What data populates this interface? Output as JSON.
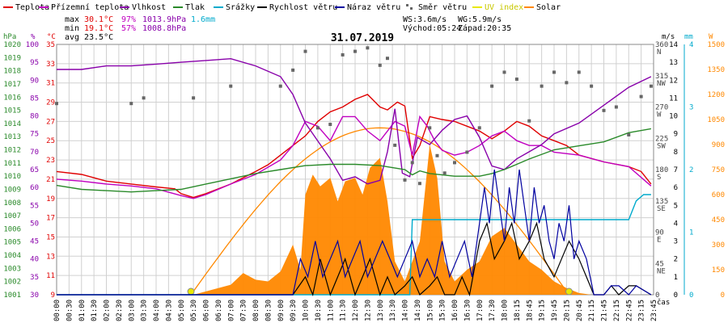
{
  "colors": {
    "teplota": "#e00000",
    "pocitova": "#c000c0",
    "vlhkost": "#8800aa",
    "tlak": "#2a8a2a",
    "srazky": "#00aacc",
    "rychlost": "#000000",
    "naraz": "#0000a0",
    "smer": "#666666",
    "uv": "#e8e800",
    "solar": "#ff8800",
    "grid": "#d0d0d0"
  },
  "legend": [
    {
      "label": "Teplota",
      "color_key": "teplota",
      "style": "line"
    },
    {
      "label": "Přízemní teplota",
      "color_key": "pocitova",
      "style": "line"
    },
    {
      "label": "Vlhkost",
      "color_key": "vlhkost",
      "style": "line"
    },
    {
      "label": "Tlak",
      "color_key": "tlak",
      "style": "line"
    },
    {
      "label": "Srážky",
      "color_key": "srazky",
      "style": "line"
    },
    {
      "label": "Rychlost větru",
      "color_key": "rychlost",
      "style": "line"
    },
    {
      "label": "Náraz větru",
      "color_key": "naraz",
      "style": "line"
    },
    {
      "label": "Směr větru",
      "color_key": "smer",
      "style": "dots"
    },
    {
      "label": "UV index",
      "color_key": "uv",
      "style": "line"
    },
    {
      "label": "Solar",
      "color_key": "solar",
      "style": "line"
    }
  ],
  "stats": {
    "max_label": "max",
    "min_label": "min",
    "avg_label": "avg",
    "max_temp": "30.1°C",
    "max_hum": "97%",
    "max_press": "1013.9hPa",
    "max_rain": "1.6mm",
    "min_temp": "19.1°C",
    "min_hum": "57%",
    "min_press": "1008.8hPa",
    "avg_temp": "23.5°C",
    "ws": "WS:3.6m/s",
    "wg": "WG:5.9m/s",
    "vychod": "Východ:05:24",
    "zapad": "Západ:20:35"
  },
  "date": "31.07.2019",
  "axis_units": {
    "hpa": "hPa",
    "pct": "%",
    "temp": "°C",
    "ms": "m/s",
    "mm": "mm",
    "w": "W",
    "cas": "čas"
  },
  "chart_data": {
    "type": "line",
    "title": "31.07.2019",
    "x_ticks": [
      "00:00",
      "00:30",
      "01:00",
      "01:30",
      "02:00",
      "02:30",
      "03:00",
      "03:30",
      "04:00",
      "04:30",
      "05:00",
      "05:30",
      "06:00",
      "06:30",
      "07:00",
      "07:30",
      "08:00",
      "08:30",
      "09:00",
      "09:30",
      "10:00",
      "10:30",
      "11:00",
      "11:30",
      "12:00",
      "12:30",
      "13:00",
      "13:30",
      "14:00",
      "14:30",
      "15:00",
      "15:30",
      "16:00",
      "16:30",
      "17:00",
      "17:30",
      "18:00",
      "18:15",
      "18:45",
      "19:15",
      "19:45",
      "20:15",
      "20:45",
      "21:15",
      "21:45",
      "22:15",
      "22:45",
      "23:15",
      "23:45"
    ],
    "axes": {
      "pressure_hpa": {
        "min": 1001,
        "max": 1020,
        "ticks": [
          "1001",
          "1002",
          "1003",
          "1004",
          "1005",
          "1006",
          "1007",
          "1008",
          "1009",
          "1010",
          "1011",
          "1012",
          "1013",
          "1014",
          "1015",
          "1016",
          "1017",
          "1018",
          "1019",
          "1020"
        ]
      },
      "humidity_pct": {
        "min": 30,
        "max": 100,
        "ticks": [
          "100",
          "95",
          "90",
          "85",
          "80",
          "75",
          "70",
          "65",
          "60",
          "55",
          "50",
          "45",
          "40",
          "35",
          "30"
        ]
      },
      "temperature_c": {
        "min": 9,
        "max": 35,
        "ticks": [
          "35",
          "33",
          "31",
          "29",
          "27",
          "25",
          "23",
          "21",
          "19",
          "17",
          "15",
          "13",
          "11",
          "9"
        ]
      },
      "direction_deg": {
        "min": 0,
        "max": 360,
        "ticks": [
          "360",
          "315",
          "270",
          "225",
          "180",
          "135",
          "90",
          "45",
          "0"
        ],
        "compass": [
          "N",
          "NW",
          "W",
          "SW",
          "S",
          "SE",
          "E",
          "NE",
          ""
        ]
      },
      "wind_ms": {
        "min": 0,
        "max": 14,
        "ticks": [
          "14",
          "13",
          "12",
          "11",
          "10",
          "9",
          "8",
          "7",
          "6",
          "5",
          "4",
          "3",
          "2",
          "1",
          "0"
        ]
      },
      "rain_mm": {
        "min": 0,
        "max": 4,
        "ticks": [
          "4",
          "3",
          "2",
          "1",
          "0"
        ]
      },
      "solar_w": {
        "min": 0,
        "max": 1500,
        "ticks": [
          "1500",
          "1350",
          "1200",
          "1050",
          "900",
          "750",
          "600",
          "450",
          "300",
          "150",
          "0"
        ]
      }
    },
    "series": [
      {
        "name": "Teplota",
        "color_key": "teplota",
        "axis": "temperature_c",
        "x": [
          0,
          1,
          2,
          3,
          4,
          4.75,
          5,
          5.5,
          6,
          7,
          8,
          8.5,
          9,
          9.5,
          10,
          10.5,
          11,
          11.5,
          12,
          12.5,
          13,
          13.3,
          13.7,
          14,
          14.3,
          14.6,
          15,
          15.5,
          16,
          16.5,
          17,
          17.5,
          18,
          18.5,
          19,
          19.5,
          20,
          20.5,
          21,
          22,
          23,
          23.5,
          23.9
        ],
        "y": [
          21.8,
          21.5,
          20.8,
          20.5,
          20.2,
          20.0,
          19.5,
          19.1,
          19.5,
          20.5,
          21.8,
          22.5,
          23.5,
          24.5,
          25.5,
          27.0,
          28.0,
          28.5,
          29.3,
          29.8,
          28.5,
          28.2,
          29.0,
          28.6,
          23.2,
          24.5,
          27.5,
          27.2,
          27.0,
          26.5,
          26.0,
          25.2,
          26.0,
          27.0,
          26.5,
          25.5,
          25.0,
          24.5,
          23.5,
          22.8,
          22.3,
          21.8,
          20.5
        ]
      },
      {
        "name": "Přízemní teplota",
        "color_key": "pocitova",
        "axis": "temperature_c",
        "x": [
          0,
          1,
          2,
          3,
          4,
          5,
          5.5,
          6,
          7,
          8,
          9,
          9.5,
          10,
          10.5,
          11,
          11.5,
          12,
          12.5,
          13,
          13.3,
          13.6,
          14,
          14.3,
          14.6,
          14.9,
          15.2,
          15.5,
          16,
          16.5,
          17,
          17.5,
          18,
          18.5,
          19,
          19.5,
          20,
          21,
          22,
          23,
          23.9
        ],
        "y": [
          21.0,
          20.8,
          20.5,
          20.3,
          20.0,
          19.3,
          19.0,
          19.4,
          20.5,
          21.5,
          23.0,
          24.5,
          27.0,
          26.5,
          25.0,
          27.5,
          27.5,
          26.0,
          25.0,
          26.0,
          27.0,
          26.5,
          23.5,
          27.5,
          26.5,
          25.0,
          24.0,
          23.5,
          23.8,
          24.5,
          25.5,
          26.0,
          25.0,
          24.5,
          24.5,
          23.8,
          23.5,
          22.8,
          22.3,
          20.3
        ]
      },
      {
        "name": "Vlhkost",
        "color_key": "vlhkost",
        "axis": "humidity_pct",
        "x": [
          0,
          1,
          2,
          3,
          4,
          5,
          6,
          7,
          8,
          9,
          9.5,
          10,
          10.5,
          11,
          11.5,
          12,
          12.5,
          13,
          13.3,
          13.6,
          13.9,
          14.2,
          14.5,
          15,
          15.5,
          16,
          16.5,
          17,
          17.5,
          18,
          18.5,
          19,
          19.5,
          20,
          21,
          22,
          23,
          23.9
        ],
        "y": [
          93.0,
          93.0,
          94.0,
          94.0,
          94.5,
          95.0,
          95.5,
          96.0,
          94.0,
          91.0,
          86.0,
          78.0,
          73.0,
          68.0,
          62.0,
          63.0,
          61.0,
          62.0,
          70.0,
          82.0,
          64.0,
          63.0,
          74.0,
          72.0,
          76.0,
          79.0,
          80.0,
          74.0,
          66.0,
          65.0,
          68.0,
          70.0,
          72.0,
          75.0,
          78.0,
          83.0,
          88.0,
          91.0
        ]
      },
      {
        "name": "Tlak",
        "color_key": "tlak",
        "axis": "pressure_hpa",
        "x": [
          0,
          1,
          2,
          3,
          4,
          5,
          6,
          7,
          8,
          9,
          10,
          11,
          12,
          13,
          14,
          14.3,
          14.6,
          15,
          16,
          17,
          17.5,
          18,
          19,
          20,
          21,
          22,
          23,
          23.9
        ],
        "y": [
          1009.3,
          1009.0,
          1008.9,
          1008.8,
          1008.9,
          1009.0,
          1009.4,
          1009.8,
          1010.2,
          1010.5,
          1010.8,
          1010.9,
          1010.9,
          1010.8,
          1010.5,
          1010.1,
          1010.4,
          1010.2,
          1010.0,
          1010.0,
          1010.2,
          1010.5,
          1011.3,
          1012.0,
          1012.3,
          1012.6,
          1013.3,
          1013.6
        ]
      },
      {
        "name": "Srážky",
        "color_key": "srazky",
        "axis": "rain_mm",
        "x": [
          0,
          14.2,
          14.3,
          23.0,
          23.3,
          23.6,
          23.9
        ],
        "y": [
          0,
          0,
          1.2,
          1.2,
          1.5,
          1.6,
          1.6
        ]
      },
      {
        "name": "Rychlost větru",
        "color_key": "rychlost",
        "axis": "wind_ms",
        "x": [
          0,
          9.5,
          10,
          10.3,
          10.6,
          11,
          11.3,
          11.6,
          12,
          12.3,
          12.6,
          13,
          13.3,
          13.6,
          14,
          14.3,
          14.6,
          15,
          15.3,
          15.6,
          16,
          16.3,
          16.6,
          17,
          17.3,
          17.6,
          18,
          18.3,
          18.6,
          19,
          19.3,
          19.6,
          20,
          20.3,
          20.6,
          21,
          21.3,
          21.6,
          22,
          22.3,
          22.6,
          23,
          23.3,
          23.9
        ],
        "y": [
          0,
          0,
          1,
          0,
          2,
          0,
          1,
          2,
          0,
          1,
          2,
          0,
          1,
          0,
          0.5,
          1,
          0,
          0.5,
          1,
          0,
          0,
          1,
          0,
          3,
          4,
          2,
          3,
          4,
          2,
          3,
          4,
          2,
          1,
          2,
          3,
          2,
          1,
          0,
          0,
          0.5,
          0,
          0.5,
          0.5,
          0
        ]
      },
      {
        "name": "Náraz větru",
        "color_key": "naraz",
        "axis": "wind_ms",
        "x": [
          0,
          9.5,
          9.8,
          10.1,
          10.4,
          10.7,
          11,
          11.3,
          11.6,
          11.9,
          12.2,
          12.5,
          12.8,
          13.1,
          13.4,
          13.7,
          14,
          14.3,
          14.6,
          14.9,
          15.2,
          15.5,
          15.8,
          16.1,
          16.4,
          16.7,
          17,
          17.2,
          17.4,
          17.6,
          17.8,
          18,
          18.2,
          18.4,
          18.6,
          18.8,
          19,
          19.2,
          19.4,
          19.6,
          19.8,
          20,
          20.2,
          20.4,
          20.6,
          20.8,
          21,
          21.3,
          21.6,
          22,
          22.3,
          22.6,
          23,
          23.3,
          23.9
        ],
        "y": [
          0,
          0,
          2,
          1,
          3,
          1,
          2,
          3,
          1,
          2,
          3,
          1,
          2,
          3,
          2,
          1,
          2,
          3,
          1,
          2,
          1,
          3,
          1,
          2,
          3,
          1,
          4,
          6,
          4,
          7,
          5,
          3,
          6,
          4,
          7,
          5,
          3,
          6,
          4,
          5,
          3,
          2,
          4,
          3,
          5,
          2,
          3,
          2,
          0,
          0,
          0.5,
          0.5,
          0,
          0.5,
          0
        ]
      }
    ],
    "wind_direction_deg": {
      "x": [
        0,
        3,
        3.5,
        5.5,
        7,
        9,
        9.5,
        10,
        10.5,
        11,
        11.5,
        12,
        12.5,
        13,
        13.3,
        13.6,
        14,
        14.3,
        14.6,
        15,
        15.3,
        15.6,
        16,
        16.5,
        17,
        17.5,
        18,
        18.5,
        19,
        19.5,
        20,
        20.5,
        21,
        21.5,
        22,
        22.5,
        23,
        23.5,
        23.9
      ],
      "y": [
        275,
        275,
        283,
        283,
        300,
        300,
        323,
        350,
        240,
        245,
        345,
        350,
        355,
        330,
        340,
        215,
        165,
        190,
        160,
        240,
        200,
        175,
        190,
        205,
        240,
        300,
        320,
        310,
        250,
        300,
        320,
        305,
        320,
        300,
        265,
        270,
        230,
        285,
        300
      ]
    },
    "solar_w": {
      "x": [
        0,
        5.5,
        6,
        7,
        7.5,
        8,
        8.5,
        9,
        9.5,
        9.8,
        10,
        10.3,
        10.6,
        11,
        11.3,
        11.6,
        12,
        12.3,
        12.6,
        13,
        13.3,
        13.6,
        14,
        14.3,
        14.6,
        15,
        15.3,
        15.6,
        16,
        16.5,
        17,
        17.5,
        18,
        18.5,
        19,
        19.5,
        20,
        20.5,
        21,
        21.5,
        22,
        23.9
      ],
      "y": [
        0,
        0,
        20,
        60,
        130,
        90,
        80,
        140,
        300,
        150,
        600,
        720,
        650,
        700,
        560,
        680,
        700,
        600,
        760,
        820,
        560,
        200,
        80,
        200,
        320,
        900,
        700,
        200,
        80,
        150,
        200,
        350,
        400,
        300,
        200,
        150,
        80,
        40,
        10,
        0,
        0,
        0
      ]
    },
    "solar_theoretical_max_w": 1000,
    "sunrise_marker": "05:24",
    "sunset_marker": "20:35"
  }
}
